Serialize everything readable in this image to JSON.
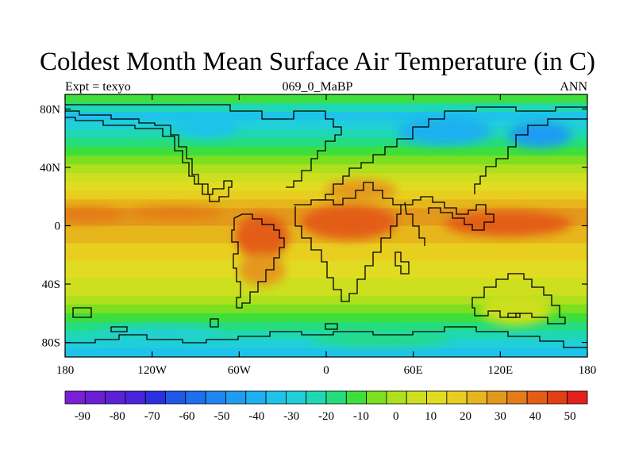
{
  "title": "Coldest Month Mean Surface Air Temperature (in C)",
  "left_string": "Expt = texyo",
  "center_string": "069_0_MaBP",
  "right_string": "ANN",
  "colors": {
    "palette": [
      "#7b1fd6",
      "#6a1fd6",
      "#5b21d9",
      "#4a24db",
      "#2a2fe0",
      "#1e58e8",
      "#1d6fee",
      "#1f86f1",
      "#1f9cf2",
      "#1eb0f0",
      "#1ec3ea",
      "#20cfd8",
      "#1fd8b3",
      "#25dc7e",
      "#3edf3d",
      "#7cdf1f",
      "#aee01e",
      "#cddf1f",
      "#e1dc22",
      "#e8cf1f",
      "#e6b61c",
      "#e39a1b",
      "#e47c19",
      "#e35d16",
      "#e33f14",
      "#e4201a"
    ]
  },
  "chart_data": {
    "type": "heatmap",
    "projection": "cylindrical-equidistant",
    "lon_ticks": [
      "180",
      "120W",
      "60W",
      "0",
      "60E",
      "120E",
      "180"
    ],
    "lat_ticks": [
      "80N",
      "40N",
      "0",
      "40S",
      "80S"
    ],
    "colorbar_labels": [
      "-90",
      "-80",
      "-70",
      "-60",
      "-50",
      "-40",
      "-30",
      "-20",
      "-10",
      "0",
      "10",
      "20",
      "30",
      "40",
      "50"
    ],
    "colorbar_range": [
      -95,
      55
    ],
    "colorbar_interval": 5,
    "units": "C"
  }
}
